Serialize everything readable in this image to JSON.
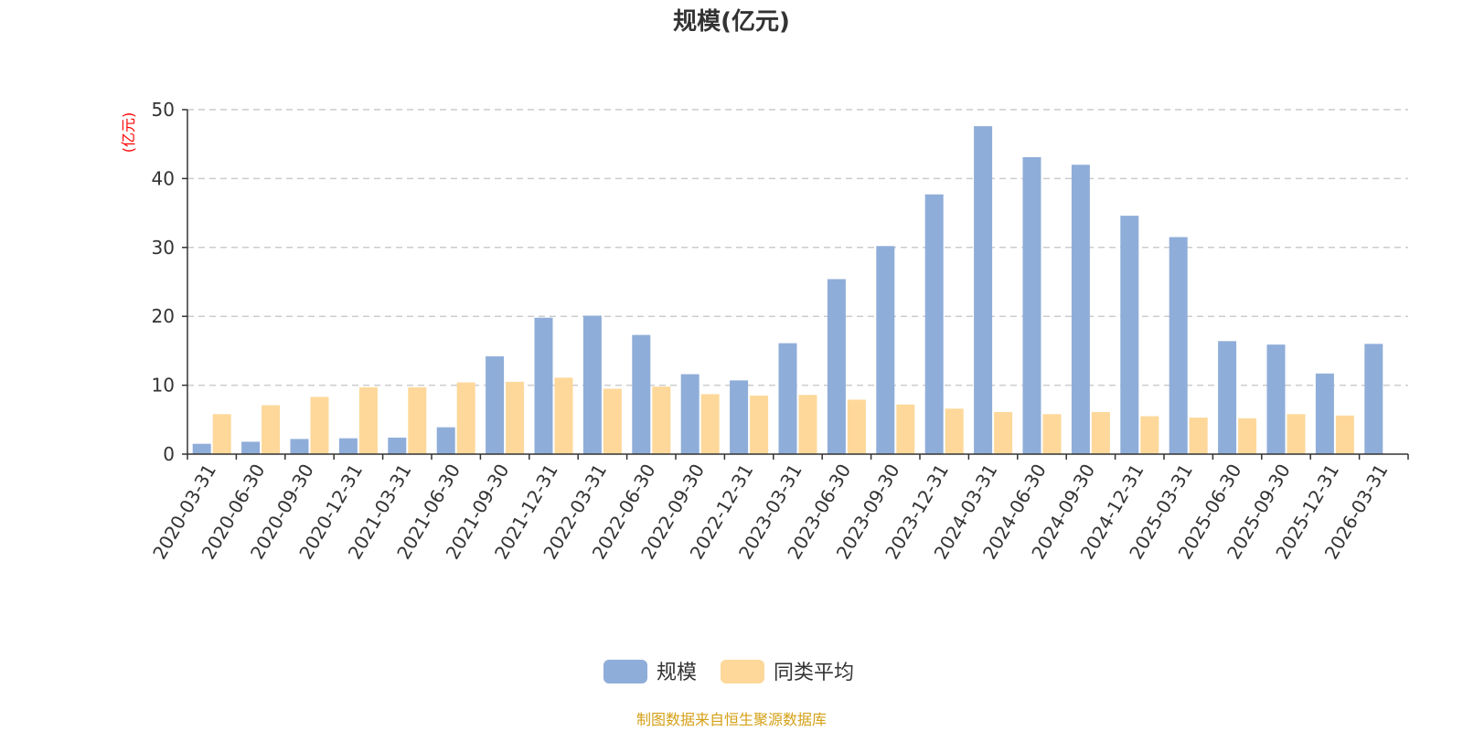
{
  "chart_data": {
    "type": "bar",
    "title": "规模(亿元)",
    "ylabel": "(亿元)",
    "ylim": [
      0,
      50
    ],
    "yticks": [
      0,
      10,
      20,
      30,
      40,
      50
    ],
    "grid": true,
    "legend_position": "bottom-center",
    "categories": [
      "2020-03-31",
      "2020-06-30",
      "2020-09-30",
      "2020-12-31",
      "2021-03-31",
      "2021-06-30",
      "2021-09-30",
      "2021-12-31",
      "2022-03-31",
      "2022-06-30",
      "2022-09-30",
      "2022-12-31",
      "2023-03-31",
      "2023-06-30",
      "2023-09-30",
      "2023-12-31",
      "2024-03-31",
      "2024-06-30",
      "2024-09-30",
      "2024-12-31",
      "2025-03-31",
      "2025-06-30",
      "2025-09-30",
      "2025-12-31",
      "2026-03-31"
    ],
    "series": [
      {
        "name": "规模",
        "color": "#8fadd9",
        "values": [
          1.5,
          1.8,
          2.2,
          2.3,
          2.4,
          3.9,
          14.2,
          19.8,
          20.1,
          17.3,
          11.6,
          10.7,
          16.1,
          25.4,
          30.2,
          37.7,
          47.6,
          43.1,
          42.0,
          34.6,
          31.5,
          16.4,
          15.9,
          11.7,
          16.0
        ]
      },
      {
        "name": "同类平均",
        "color": "#fdd89a",
        "values": [
          5.8,
          7.1,
          8.3,
          9.7,
          9.7,
          10.4,
          10.5,
          11.1,
          9.5,
          9.8,
          8.7,
          8.5,
          8.6,
          7.9,
          7.2,
          6.6,
          6.1,
          5.8,
          6.1,
          5.5,
          5.3,
          5.2,
          5.8,
          5.6,
          null
        ]
      }
    ],
    "footer": "制图数据来自恒生聚源数据库"
  },
  "colors": {
    "axis": "#333333",
    "grid": "#cccccc",
    "unit_label": "#ff0000",
    "footer": "#d4a017",
    "title": "#333333"
  }
}
